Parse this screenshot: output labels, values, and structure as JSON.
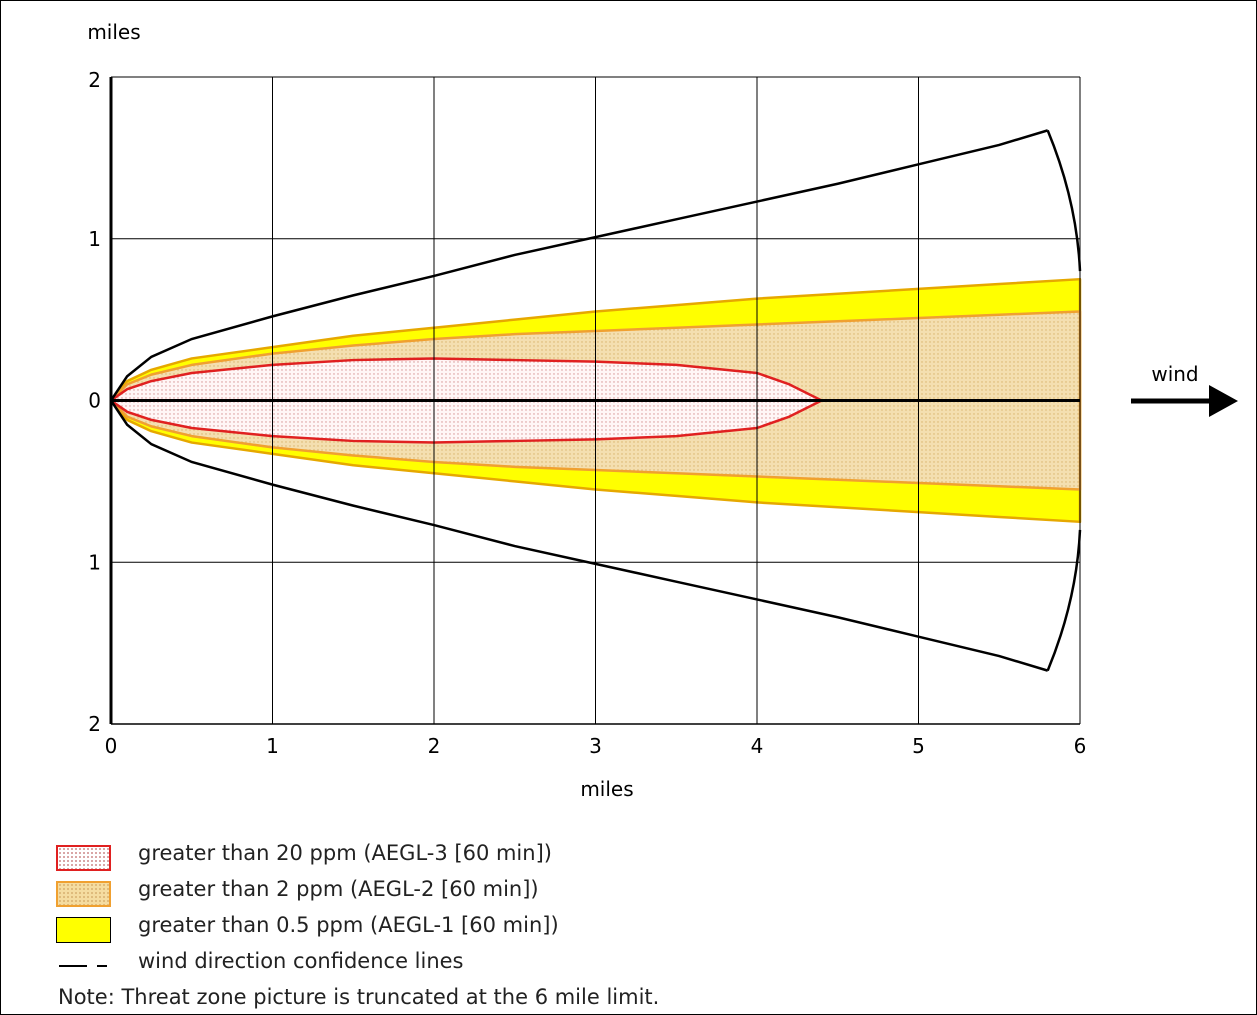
{
  "chart_data": {
    "type": "area",
    "xlabel": "miles",
    "ylabel": "miles",
    "xlim": [
      0,
      6
    ],
    "ylim": [
      -2,
      2
    ],
    "x_ticks": [
      "0",
      "1",
      "2",
      "3",
      "4",
      "5",
      "6"
    ],
    "y_ticks": [
      "2",
      "1",
      "0",
      "1",
      "2"
    ],
    "grid": true,
    "wind_label": "wind",
    "series": [
      {
        "key": "aegl3",
        "name": "greater than 20 ppm (AEGL-3 [60 min])",
        "x": [
          0,
          0.1,
          0.25,
          0.5,
          1,
          1.5,
          2,
          2.5,
          3,
          3.5,
          4,
          4.2,
          4.4
        ],
        "half_width": [
          0,
          0.07,
          0.12,
          0.17,
          0.22,
          0.25,
          0.26,
          0.25,
          0.24,
          0.22,
          0.17,
          0.1,
          0
        ],
        "fill": "#fff8f8",
        "stroke": "#e02020"
      },
      {
        "key": "aegl2",
        "name": "greater than 2 ppm (AEGL-2 [60 min])",
        "x": [
          0,
          0.1,
          0.25,
          0.5,
          1,
          1.5,
          2,
          2.5,
          3,
          3.5,
          4,
          4.5,
          5,
          5.5,
          6
        ],
        "half_width": [
          0,
          0.1,
          0.16,
          0.22,
          0.29,
          0.34,
          0.38,
          0.41,
          0.43,
          0.45,
          0.47,
          0.49,
          0.51,
          0.53,
          0.55
        ],
        "fill": "#f3dca6",
        "stroke": "#f0a030"
      },
      {
        "key": "aegl1",
        "name": "greater than 0.5 ppm (AEGL-1 [60 min])",
        "x": [
          0,
          0.1,
          0.25,
          0.5,
          1,
          1.5,
          2,
          2.5,
          3,
          3.5,
          4,
          4.5,
          5,
          5.5,
          6
        ],
        "half_width": [
          0,
          0.12,
          0.19,
          0.26,
          0.33,
          0.4,
          0.45,
          0.5,
          0.55,
          0.59,
          0.63,
          0.66,
          0.69,
          0.72,
          0.75
        ],
        "fill": "#ffff00",
        "stroke": "#e6a800"
      }
    ],
    "confidence": {
      "name": "wind direction confidence lines",
      "x": [
        0,
        0.1,
        0.25,
        0.5,
        1,
        1.5,
        2,
        2.5,
        3,
        3.5,
        4,
        4.5,
        5,
        5.5,
        5.8
      ],
      "half_width": [
        0,
        0.15,
        0.27,
        0.38,
        0.52,
        0.65,
        0.77,
        0.9,
        1.01,
        1.12,
        1.23,
        1.34,
        1.46,
        1.58,
        1.67
      ],
      "arc_end_x": 6,
      "arc_end_half_width": 0.8
    }
  },
  "note": "Note: Threat zone picture is truncated at the 6 mile limit.",
  "colors": {
    "aegl3": "#e02020",
    "aegl2": "#f0a030",
    "aegl1": "#ffff00",
    "grid": "#000000"
  }
}
